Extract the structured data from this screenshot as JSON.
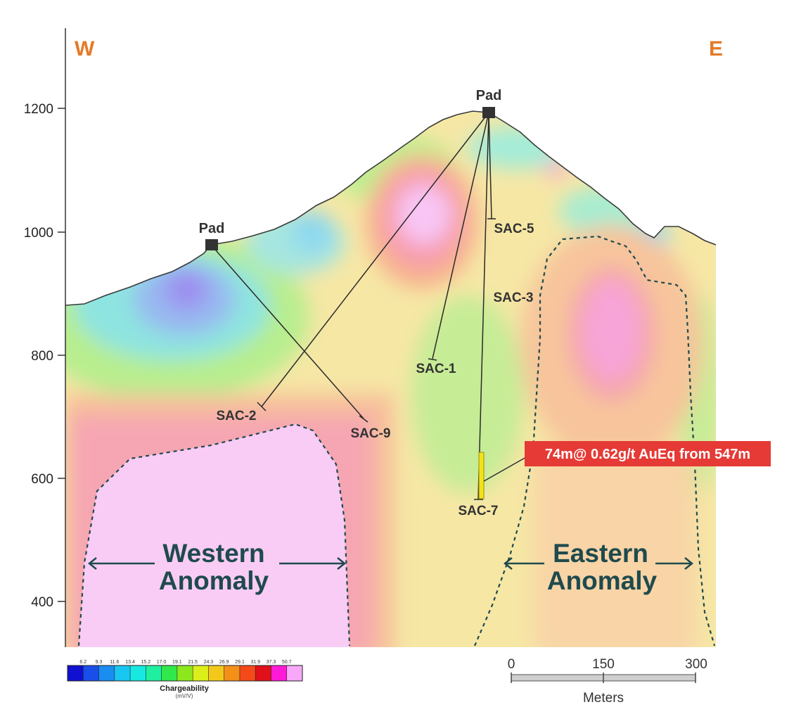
{
  "compass": {
    "west": "W",
    "east": "E",
    "color": "#e57a27"
  },
  "y_axis": {
    "ticks": [
      "1200",
      "1000",
      "800",
      "400"
    ],
    "tick_600": "600"
  },
  "pads": {
    "west_label": "Pad",
    "east_label": "Pad"
  },
  "drillholes": {
    "sac5": "SAC-5",
    "sac3": "SAC-3",
    "sac1": "SAC-1",
    "sac2": "SAC-2",
    "sac9": "SAC-9",
    "sac7": "SAC-7"
  },
  "intercept": {
    "text": "74m@ 0.62g/t AuEq from 547m",
    "color": "#e53a35"
  },
  "anomalies": {
    "western_line1": "Western",
    "western_line2": "Anomaly",
    "eastern_line1": "Eastern",
    "eastern_line2": "Anomaly",
    "color": "#1f4a4e"
  },
  "legend": {
    "title": "Chargeability",
    "units": "(mV/V)",
    "values": [
      "6.2",
      "9.3",
      "11.6",
      "13.4",
      "15.2",
      "17.0",
      "19.1",
      "21.5",
      "24.3",
      "26.9",
      "29.1",
      "31.9",
      "37.3",
      "50.7"
    ],
    "colors": [
      "#1010d0",
      "#1a4ee8",
      "#1a8ef0",
      "#19c6f2",
      "#17e8e0",
      "#1ef0a0",
      "#30e84a",
      "#8ce81c",
      "#dcef1a",
      "#f4c81a",
      "#f48f1a",
      "#f44a1a",
      "#e0101a",
      "#ff1ad8",
      "#f8a8f8"
    ]
  },
  "scale_bar": {
    "ticks": [
      "0",
      "150",
      "300"
    ],
    "unit": "Meters"
  }
}
